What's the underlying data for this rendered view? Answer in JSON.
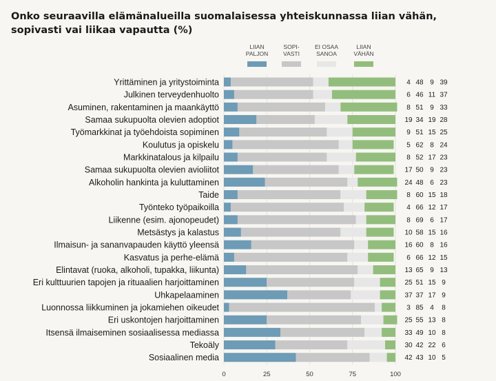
{
  "title": "Onko seuraavilla elämänalueilla suomalaisessa yhteiskunnassa liian vähän, sopivasti vai liikaa vapautta (%)",
  "colors": {
    "liian_paljon": "#6e9bb5",
    "sopivasti": "#c7c7c7",
    "ei_osaa_sanoa": "#e7e7e7",
    "liian_vahan": "#93bd7c",
    "background": "#f7f6f2"
  },
  "chart_data": {
    "type": "bar",
    "orientation": "horizontal-stacked",
    "title": "Onko seuraavilla elämänalueilla suomalaisessa yhteiskunnassa liian vähän, sopivasti vai liikaa vapautta (%)",
    "xlabel": "",
    "ylabel": "",
    "xlim": [
      0,
      100
    ],
    "xticks": [
      "0",
      "25",
      "50",
      "75",
      "100"
    ],
    "legend_position": "top-right",
    "legend": [
      [
        "LIIAN",
        "PALJON"
      ],
      [
        "SOPI-",
        "VASTI"
      ],
      [
        "EI OSAA",
        "SANOA"
      ],
      [
        "LIIAN",
        "VÄHÄN"
      ]
    ],
    "categories": [
      "Yrittäminen ja yritystoiminta",
      "Julkinen terveydenhuolto",
      "Asuminen, rakentaminen ja maankäyttö",
      "Samaa sukupuolta olevien adoptiot",
      "Työmarkkinat ja työehdoista sopiminen",
      "Koulutus ja opiskelu",
      "Markkinatalous ja kilpailu",
      "Samaa sukupuolta olevien avioliitot",
      "Alkoholin hankinta ja kuluttaminen",
      "Taide",
      "Työnteko työpaikoilla",
      "Liikenne (esim. ajonopeudet)",
      "Metsästys ja kalastus",
      "Ilmaisun- ja sananvapauden käyttö yleensä",
      "Kasvatus ja perhe-elämä",
      "Elintavat (ruoka, alkoholi, tupakka, liikunta)",
      "Eri kulttuurien tapojen ja rituaalien harjoittaminen",
      "Uhkapelaaminen",
      "Luonnossa liikkuminen ja jokamiehen oikeudet",
      "Eri uskontojen harjoittaminen",
      "Itsensä ilmaiseminen sosiaalisessa mediassa",
      "Tekoäly",
      "Sosiaalinen media"
    ],
    "series": [
      {
        "name": "LIIAN PALJON",
        "values": [
          4,
          6,
          8,
          19,
          9,
          5,
          8,
          17,
          24,
          8,
          4,
          8,
          10,
          16,
          6,
          13,
          25,
          37,
          3,
          25,
          33,
          30,
          42
        ]
      },
      {
        "name": "SOPIVASTI",
        "values": [
          48,
          46,
          51,
          34,
          51,
          62,
          52,
          50,
          48,
          60,
          66,
          69,
          58,
          60,
          66,
          65,
          51,
          37,
          85,
          55,
          49,
          42,
          43
        ]
      },
      {
        "name": "EI OSAA SANOA",
        "values": [
          9,
          11,
          9,
          19,
          15,
          8,
          17,
          9,
          6,
          15,
          12,
          6,
          15,
          8,
          12,
          9,
          15,
          17,
          4,
          13,
          10,
          22,
          10
        ]
      },
      {
        "name": "LIIAN VÄHÄN",
        "values": [
          39,
          37,
          33,
          28,
          25,
          24,
          23,
          23,
          23,
          18,
          17,
          17,
          16,
          16,
          15,
          13,
          9,
          9,
          8,
          8,
          8,
          6,
          5
        ]
      }
    ]
  }
}
